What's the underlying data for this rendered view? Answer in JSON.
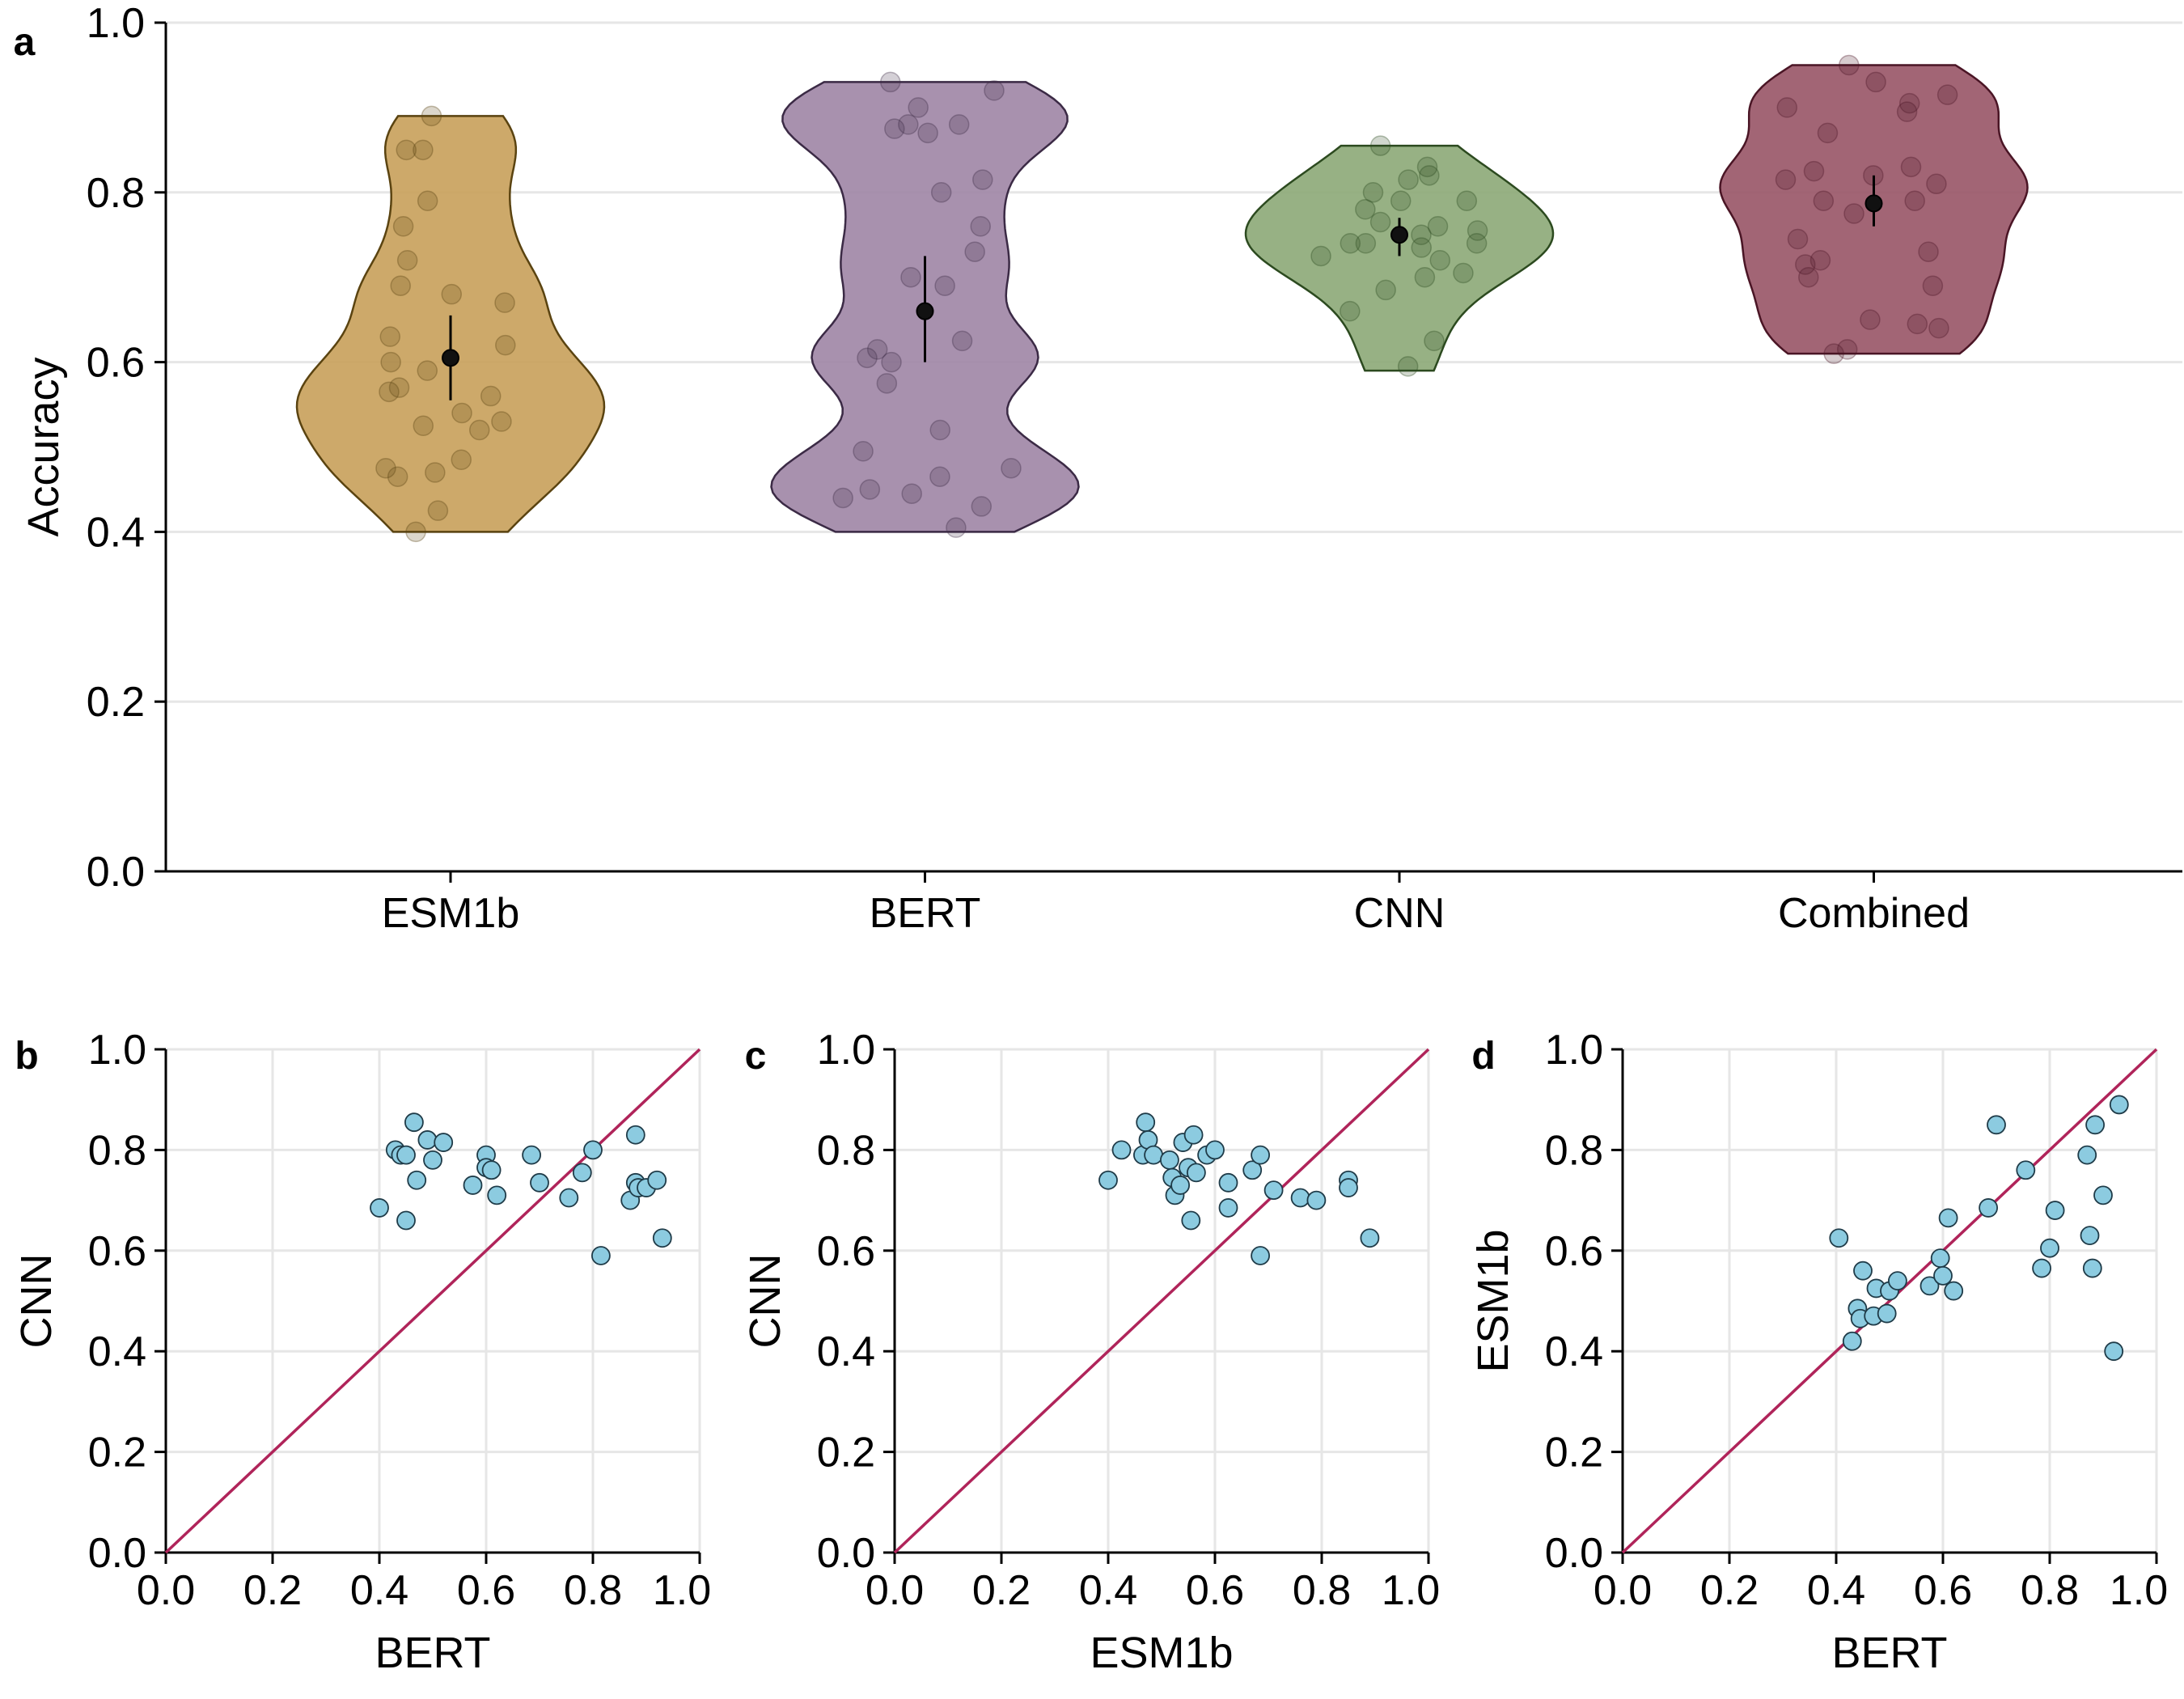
{
  "chart_data": [
    {
      "id": "a",
      "panel_label": "a",
      "type": "violin",
      "ylabel": "Accuracy",
      "ylim": [
        0,
        1
      ],
      "yticks": [
        "0.0",
        "0.2",
        "0.4",
        "0.6",
        "0.8",
        "1.0"
      ],
      "categories": [
        "ESM1b",
        "BERT",
        "CNN",
        "Combined"
      ],
      "grid": "horizontal",
      "legend": "none",
      "series": [
        {
          "category": "ESM1b",
          "color": "#c8a05a",
          "edge": "#5a4310",
          "range": [
            0.4,
            0.89
          ],
          "mean": 0.605,
          "ci": [
            0.555,
            0.655
          ],
          "points": [
            0.89,
            0.85,
            0.85,
            0.79,
            0.76,
            0.72,
            0.69,
            0.68,
            0.67,
            0.63,
            0.62,
            0.6,
            0.59,
            0.57,
            0.565,
            0.56,
            0.54,
            0.53,
            0.525,
            0.52,
            0.485,
            0.475,
            0.47,
            0.465,
            0.425,
            0.4
          ]
        },
        {
          "category": "BERT",
          "color": "#9e85a5",
          "edge": "#3b2a45",
          "range": [
            0.4,
            0.93
          ],
          "mean": 0.66,
          "ci": [
            0.6,
            0.725
          ],
          "points": [
            0.93,
            0.92,
            0.9,
            0.88,
            0.88,
            0.875,
            0.87,
            0.815,
            0.8,
            0.76,
            0.73,
            0.7,
            0.69,
            0.625,
            0.615,
            0.605,
            0.6,
            0.575,
            0.52,
            0.495,
            0.475,
            0.465,
            0.45,
            0.445,
            0.44,
            0.43,
            0.405
          ]
        },
        {
          "category": "CNN",
          "color": "#8ca877",
          "edge": "#2c4a1f",
          "range": [
            0.59,
            0.855
          ],
          "mean": 0.75,
          "ci": [
            0.725,
            0.77
          ],
          "points": [
            0.855,
            0.83,
            0.82,
            0.815,
            0.8,
            0.79,
            0.79,
            0.78,
            0.765,
            0.76,
            0.755,
            0.75,
            0.74,
            0.74,
            0.74,
            0.735,
            0.725,
            0.72,
            0.705,
            0.7,
            0.685,
            0.66,
            0.625,
            0.595
          ]
        },
        {
          "category": "Combined",
          "color": "#985466",
          "edge": "#4a1525",
          "range": [
            0.61,
            0.95
          ],
          "mean": 0.787,
          "ci": [
            0.76,
            0.82
          ],
          "points": [
            0.95,
            0.93,
            0.915,
            0.905,
            0.9,
            0.895,
            0.87,
            0.83,
            0.825,
            0.82,
            0.815,
            0.81,
            0.79,
            0.79,
            0.775,
            0.745,
            0.73,
            0.72,
            0.715,
            0.7,
            0.69,
            0.65,
            0.645,
            0.64,
            0.615,
            0.61
          ]
        }
      ]
    },
    {
      "id": "b",
      "panel_label": "b",
      "type": "scatter",
      "xlabel": "BERT",
      "ylabel": "CNN",
      "xlim": [
        0,
        1
      ],
      "ylim": [
        0,
        1
      ],
      "ticks": [
        "0.0",
        "0.2",
        "0.4",
        "0.6",
        "0.8",
        "1.0"
      ],
      "point_color": "#8ccbe0",
      "line_color": "#b0245a",
      "reference_line": "y = x",
      "points": [
        [
          0.4,
          0.685
        ],
        [
          0.43,
          0.8
        ],
        [
          0.44,
          0.79
        ],
        [
          0.45,
          0.79
        ],
        [
          0.45,
          0.66
        ],
        [
          0.465,
          0.855
        ],
        [
          0.47,
          0.74
        ],
        [
          0.49,
          0.82
        ],
        [
          0.5,
          0.78
        ],
        [
          0.52,
          0.815
        ],
        [
          0.575,
          0.73
        ],
        [
          0.6,
          0.79
        ],
        [
          0.6,
          0.765
        ],
        [
          0.61,
          0.76
        ],
        [
          0.62,
          0.71
        ],
        [
          0.685,
          0.79
        ],
        [
          0.7,
          0.735
        ],
        [
          0.755,
          0.705
        ],
        [
          0.78,
          0.755
        ],
        [
          0.8,
          0.8
        ],
        [
          0.815,
          0.59
        ],
        [
          0.87,
          0.7
        ],
        [
          0.88,
          0.83
        ],
        [
          0.88,
          0.735
        ],
        [
          0.885,
          0.725
        ],
        [
          0.9,
          0.725
        ],
        [
          0.92,
          0.74
        ],
        [
          0.93,
          0.625
        ]
      ]
    },
    {
      "id": "c",
      "panel_label": "c",
      "type": "scatter",
      "xlabel": "ESM1b",
      "ylabel": "CNN",
      "xlim": [
        0,
        1
      ],
      "ylim": [
        0,
        1
      ],
      "ticks": [
        "0.0",
        "0.2",
        "0.4",
        "0.6",
        "0.8",
        "1.0"
      ],
      "point_color": "#8ccbe0",
      "line_color": "#b0245a",
      "reference_line": "y = x",
      "points": [
        [
          0.4,
          0.74
        ],
        [
          0.425,
          0.8
        ],
        [
          0.465,
          0.79
        ],
        [
          0.47,
          0.855
        ],
        [
          0.475,
          0.82
        ],
        [
          0.485,
          0.79
        ],
        [
          0.515,
          0.78
        ],
        [
          0.52,
          0.745
        ],
        [
          0.525,
          0.71
        ],
        [
          0.535,
          0.73
        ],
        [
          0.54,
          0.815
        ],
        [
          0.55,
          0.765
        ],
        [
          0.555,
          0.66
        ],
        [
          0.56,
          0.83
        ],
        [
          0.565,
          0.755
        ],
        [
          0.585,
          0.79
        ],
        [
          0.6,
          0.8
        ],
        [
          0.625,
          0.735
        ],
        [
          0.625,
          0.685
        ],
        [
          0.67,
          0.76
        ],
        [
          0.685,
          0.79
        ],
        [
          0.685,
          0.59
        ],
        [
          0.71,
          0.72
        ],
        [
          0.76,
          0.705
        ],
        [
          0.79,
          0.7
        ],
        [
          0.85,
          0.74
        ],
        [
          0.85,
          0.725
        ],
        [
          0.89,
          0.625
        ]
      ]
    },
    {
      "id": "d",
      "panel_label": "d",
      "type": "scatter",
      "xlabel": "BERT",
      "ylabel": "ESM1b",
      "xlim": [
        0,
        1
      ],
      "ylim": [
        0,
        1
      ],
      "ticks": [
        "0.0",
        "0.2",
        "0.4",
        "0.6",
        "0.8",
        "1.0"
      ],
      "point_color": "#8ccbe0",
      "line_color": "#b0245a",
      "reference_line": "y = x",
      "points": [
        [
          0.405,
          0.625
        ],
        [
          0.43,
          0.42
        ],
        [
          0.44,
          0.485
        ],
        [
          0.445,
          0.465
        ],
        [
          0.45,
          0.56
        ],
        [
          0.47,
          0.47
        ],
        [
          0.475,
          0.525
        ],
        [
          0.495,
          0.475
        ],
        [
          0.5,
          0.52
        ],
        [
          0.515,
          0.54
        ],
        [
          0.575,
          0.53
        ],
        [
          0.595,
          0.585
        ],
        [
          0.6,
          0.55
        ],
        [
          0.61,
          0.665
        ],
        [
          0.62,
          0.52
        ],
        [
          0.685,
          0.685
        ],
        [
          0.7,
          0.85
        ],
        [
          0.755,
          0.76
        ],
        [
          0.785,
          0.565
        ],
        [
          0.8,
          0.605
        ],
        [
          0.81,
          0.68
        ],
        [
          0.87,
          0.79
        ],
        [
          0.875,
          0.63
        ],
        [
          0.88,
          0.565
        ],
        [
          0.885,
          0.85
        ],
        [
          0.9,
          0.71
        ],
        [
          0.92,
          0.4
        ],
        [
          0.93,
          0.89
        ]
      ]
    }
  ]
}
